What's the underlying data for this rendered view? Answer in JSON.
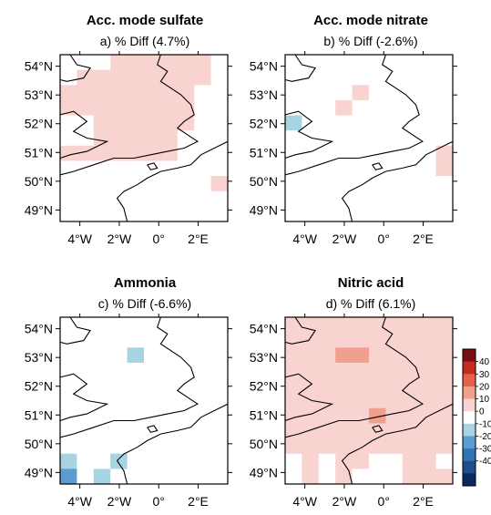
{
  "panels": [
    {
      "title": "Acc. mode sulfate",
      "subtitle": "a) % Diff (4.7%)",
      "grid": [
        [
          1,
          1,
          1,
          5,
          5,
          5,
          5,
          5,
          5,
          1
        ],
        [
          1,
          5,
          5,
          5,
          5,
          5,
          5,
          5,
          5,
          1
        ],
        [
          5,
          5,
          9,
          5,
          5,
          5,
          5,
          5,
          1,
          1
        ],
        [
          5,
          5,
          5,
          5,
          5,
          5,
          5,
          5,
          1,
          1
        ],
        [
          1,
          1,
          5,
          5,
          5,
          5,
          5,
          5,
          1,
          1
        ],
        [
          1,
          1,
          5,
          5,
          5,
          5,
          5,
          1,
          1,
          1
        ],
        [
          5,
          5,
          5,
          5,
          5,
          5,
          5,
          1,
          1,
          1
        ],
        [
          1,
          1,
          1,
          1,
          1,
          1,
          1,
          1,
          1,
          1
        ],
        [
          1,
          1,
          1,
          1,
          1,
          1,
          1,
          1,
          1,
          5
        ],
        [
          1,
          1,
          1,
          1,
          1,
          1,
          1,
          1,
          1,
          1
        ],
        [
          1,
          1,
          1,
          1,
          1,
          1,
          1,
          1,
          1,
          1
        ]
      ]
    },
    {
      "title": "Acc. mode nitrate",
      "subtitle": "b) % Diff (-2.6%)",
      "grid": [
        [
          -5,
          -5,
          0,
          0,
          0,
          0,
          -5,
          -5,
          -5,
          0
        ],
        [
          -5,
          0,
          0,
          0,
          0,
          0,
          0,
          0,
          0,
          0
        ],
        [
          0,
          0,
          0,
          0,
          5,
          0,
          0,
          1,
          0,
          0
        ],
        [
          0,
          0,
          0,
          9,
          0,
          0,
          0,
          0,
          0,
          0
        ],
        [
          -9,
          0,
          0,
          1,
          1,
          0,
          0,
          0,
          0,
          0
        ],
        [
          0,
          0,
          0,
          1,
          0,
          1,
          0,
          0,
          0,
          1
        ],
        [
          0,
          0,
          0,
          0,
          0,
          0,
          0,
          0,
          0,
          5
        ],
        [
          0,
          0,
          0,
          0,
          0,
          0,
          0,
          0,
          -1,
          9
        ],
        [
          0,
          0,
          0,
          0,
          0,
          0,
          -1,
          0,
          0,
          0
        ],
        [
          -1,
          0,
          0,
          0,
          -5,
          -1,
          -5,
          -5,
          0,
          0
        ],
        [
          0,
          0,
          0,
          -5,
          0,
          0,
          0,
          0,
          -1,
          -1
        ]
      ]
    },
    {
      "title": "Ammonia",
      "subtitle": "c) % Diff (-6.6%)",
      "grid": [
        [
          -1,
          -1,
          -1,
          -1,
          -1,
          -1,
          -1,
          -1,
          -1,
          -1
        ],
        [
          -1,
          -1,
          -1,
          -1,
          -1,
          -1,
          -1,
          0,
          0,
          0
        ],
        [
          -5,
          -5,
          -1,
          -1,
          -15,
          -1,
          -1,
          -1,
          -1,
          -1
        ],
        [
          -1,
          -5,
          -1,
          -5,
          -5,
          -1,
          -1,
          0,
          0,
          0
        ],
        [
          -5,
          -5,
          -1,
          -1,
          -1,
          -1,
          0,
          0,
          0,
          -1
        ],
        [
          -1,
          -1,
          -5,
          -1,
          -1,
          0,
          0,
          0,
          0,
          -1
        ],
        [
          -5,
          -5,
          -5,
          -1,
          -1,
          0,
          -1,
          -1,
          0,
          -1
        ],
        [
          -5,
          -1,
          -1,
          -1,
          -1,
          -1,
          -1,
          -1,
          -5,
          -1
        ],
        [
          -5,
          -5,
          -5,
          -5,
          -1,
          -1,
          -1,
          -1,
          -5,
          -1
        ],
        [
          -15,
          -5,
          -5,
          -9,
          -1,
          -1,
          -1,
          -1,
          -5,
          -1
        ],
        [
          -20,
          -5,
          -9,
          -5,
          -1,
          -1,
          -1,
          -1,
          -1,
          1
        ]
      ]
    },
    {
      "title": "Nitric acid",
      "subtitle": "d) % Diff (6.1%)",
      "grid": [
        [
          5,
          5,
          5,
          5,
          5,
          5,
          5,
          5,
          5,
          5
        ],
        [
          5,
          9,
          9,
          9,
          9,
          9,
          5,
          5,
          5,
          5
        ],
        [
          5,
          9,
          9,
          15,
          15,
          9,
          5,
          5,
          5,
          5
        ],
        [
          9,
          9,
          9,
          9,
          9,
          9,
          5,
          5,
          5,
          5
        ],
        [
          5,
          5,
          9,
          9,
          9,
          9,
          5,
          5,
          5,
          5
        ],
        [
          5,
          9,
          9,
          9,
          9,
          9,
          5,
          5,
          5,
          5
        ],
        [
          9,
          9,
          9,
          9,
          9,
          15,
          5,
          5,
          5,
          5
        ],
        [
          5,
          5,
          5,
          5,
          5,
          5,
          5,
          5,
          5,
          5
        ],
        [
          5,
          5,
          5,
          5,
          5,
          5,
          5,
          5,
          5,
          5
        ],
        [
          1,
          5,
          1,
          5,
          5,
          1,
          1,
          5,
          5,
          1
        ],
        [
          1,
          5,
          1,
          5,
          1,
          0,
          1,
          5,
          9,
          5
        ]
      ]
    }
  ],
  "axes": {
    "lon_range": [
      -5,
      3.5
    ],
    "lat_range": [
      48.6,
      54.4
    ],
    "xticks": [
      {
        "value": -4,
        "label": "4°W"
      },
      {
        "value": -2,
        "label": "2°W"
      },
      {
        "value": 0,
        "label": "0°"
      },
      {
        "value": 2,
        "label": "2°E"
      }
    ],
    "yticks": [
      {
        "value": 54,
        "label": "54°N"
      },
      {
        "value": 53,
        "label": "53°N"
      },
      {
        "value": 52,
        "label": "52°N"
      },
      {
        "value": 51,
        "label": "51°N"
      },
      {
        "value": 50,
        "label": "50°N"
      },
      {
        "value": 49,
        "label": "49°N"
      }
    ]
  },
  "colorbar": {
    "ticks": [
      "40",
      "30",
      "20",
      "10",
      "0",
      "-10",
      "-20",
      "-30",
      "-40"
    ],
    "levels": [
      -45,
      -35,
      -25,
      -15,
      -5,
      5,
      15,
      25,
      35,
      45
    ],
    "colors": [
      "#0a2a5e",
      "#1f4e8c",
      "#2f74b5",
      "#5a9bd0",
      "#a6d4e1",
      "#ffffff",
      "#f8d3cf",
      "#f0a08c",
      "#e6614a",
      "#c72a22",
      "#7a0f14"
    ]
  },
  "chart_data": [
    {
      "type": "heatmap",
      "title": "Acc. mode sulfate",
      "subtitle": "a) % Diff (4.7%)",
      "xlim": [
        -5,
        3.5
      ],
      "ylim": [
        48.6,
        54.4
      ]
    },
    {
      "type": "heatmap",
      "title": "Acc. mode nitrate",
      "subtitle": "b) % Diff (-2.6%)",
      "xlim": [
        -5,
        3.5
      ],
      "ylim": [
        48.6,
        54.4
      ]
    },
    {
      "type": "heatmap",
      "title": "Ammonia",
      "subtitle": "c) % Diff (-6.6%)",
      "xlim": [
        -5,
        3.5
      ],
      "ylim": [
        48.6,
        54.4
      ]
    },
    {
      "type": "heatmap",
      "title": "Nitric acid",
      "subtitle": "d) % Diff (6.1%)",
      "xlim": [
        -5,
        3.5
      ],
      "ylim": [
        48.6,
        54.4
      ]
    }
  ]
}
